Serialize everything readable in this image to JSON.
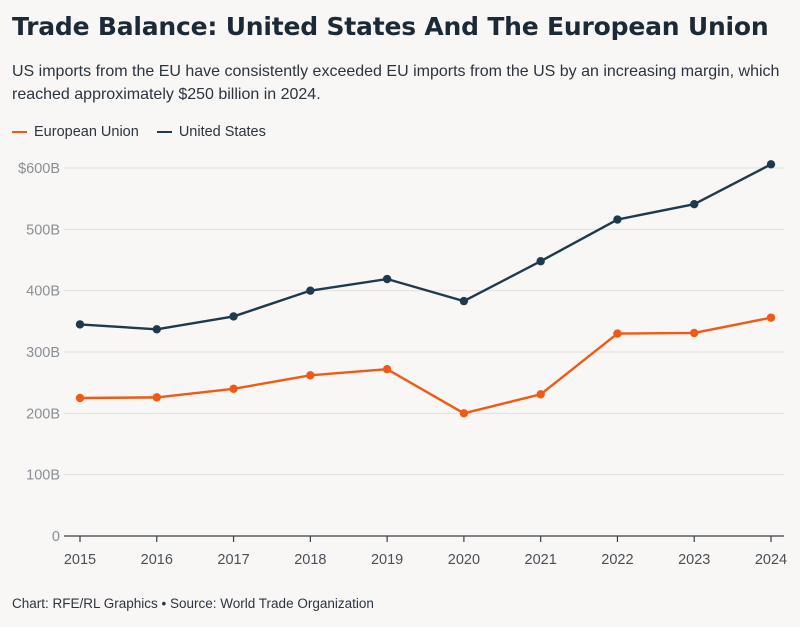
{
  "title": "Trade Balance: United States And The European Union",
  "subtitle": "US imports from the EU have consistently exceeded EU imports from the US by an increasing margin, which reached approximately $250 billion in 2024.",
  "footer": "Chart: RFE/RL Graphics • Source: World Trade Organization",
  "colors": {
    "eu": "#f05a14",
    "us": "#1f3a4d"
  },
  "chart_data": {
    "type": "line",
    "title": "Trade Balance: United States And The European Union",
    "x": [
      2015,
      2016,
      2017,
      2018,
      2019,
      2020,
      2021,
      2022,
      2023,
      2024
    ],
    "x_tick_labels": [
      "2015",
      "2016",
      "2017",
      "2018",
      "2019",
      "2020",
      "2021",
      "2022",
      "2023",
      "2024"
    ],
    "y_ticks": [
      0,
      100,
      200,
      300,
      400,
      500,
      600
    ],
    "y_tick_labels": [
      "0",
      "100B",
      "200B",
      "300B",
      "400B",
      "500B",
      "$600B"
    ],
    "ylim": [
      0,
      600
    ],
    "grid": true,
    "legend_position": "top-left",
    "series": [
      {
        "name": "European Union",
        "color": "#f05a14",
        "values": [
          225,
          226,
          240,
          262,
          272,
          200,
          231,
          330,
          331,
          356
        ]
      },
      {
        "name": "United States",
        "color": "#1f3a4d",
        "values": [
          345,
          337,
          358,
          400,
          419,
          383,
          448,
          516,
          541,
          606
        ]
      }
    ]
  }
}
